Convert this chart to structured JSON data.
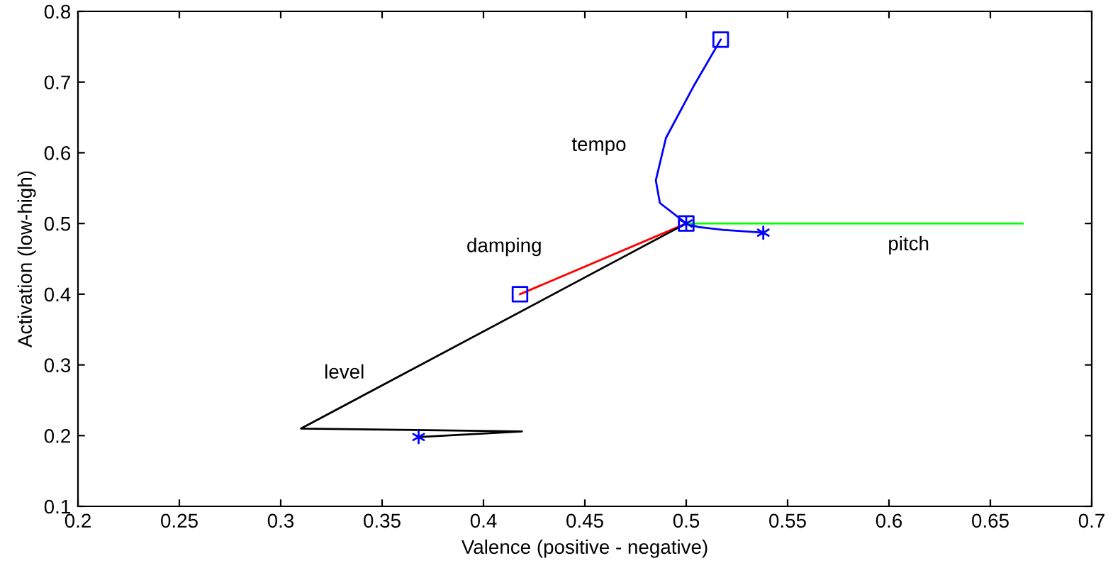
{
  "chart_data": {
    "type": "line",
    "xlabel": "Valence (positive - negative)",
    "ylabel": "Activation (low-high)",
    "xlim": [
      0.2,
      0.7
    ],
    "ylim": [
      0.1,
      0.8
    ],
    "xticks": [
      0.2,
      0.25,
      0.3,
      0.35,
      0.4,
      0.45,
      0.5,
      0.55,
      0.6,
      0.65,
      0.7
    ],
    "yticks": [
      0.1,
      0.2,
      0.3,
      0.4,
      0.5,
      0.6,
      0.7,
      0.8
    ],
    "legend": false,
    "series": [
      {
        "name": "tempo",
        "color": "#0000ff",
        "x": [
          0.517,
          0.504,
          0.49,
          0.485,
          0.487,
          0.496,
          0.5,
          0.506,
          0.518,
          0.538
        ],
        "values": [
          0.76,
          0.696,
          0.621,
          0.561,
          0.529,
          0.509,
          0.5,
          0.495,
          0.491,
          0.487
        ]
      },
      {
        "name": "pitch",
        "color": "#00ff00",
        "x": [
          0.5,
          0.666
        ],
        "values": [
          0.5,
          0.5
        ]
      },
      {
        "name": "damping",
        "color": "#ff0000",
        "x": [
          0.418,
          0.5
        ],
        "values": [
          0.4,
          0.5
        ]
      },
      {
        "name": "level",
        "color": "#000000",
        "x": [
          0.5,
          0.31,
          0.419,
          0.368
        ],
        "values": [
          0.5,
          0.21,
          0.206,
          0.198
        ]
      },
      {
        "type": "scatter",
        "color": "#0000ff",
        "marker": "square",
        "x": [
          0.517,
          0.5,
          0.418
        ],
        "values": [
          0.76,
          0.5,
          0.4
        ]
      },
      {
        "type": "scatter",
        "color": "#0000ff",
        "marker": "cross",
        "x": [
          0.368,
          0.538,
          0.5
        ],
        "values": [
          0.198,
          0.487,
          0.5
        ]
      }
    ]
  }
}
